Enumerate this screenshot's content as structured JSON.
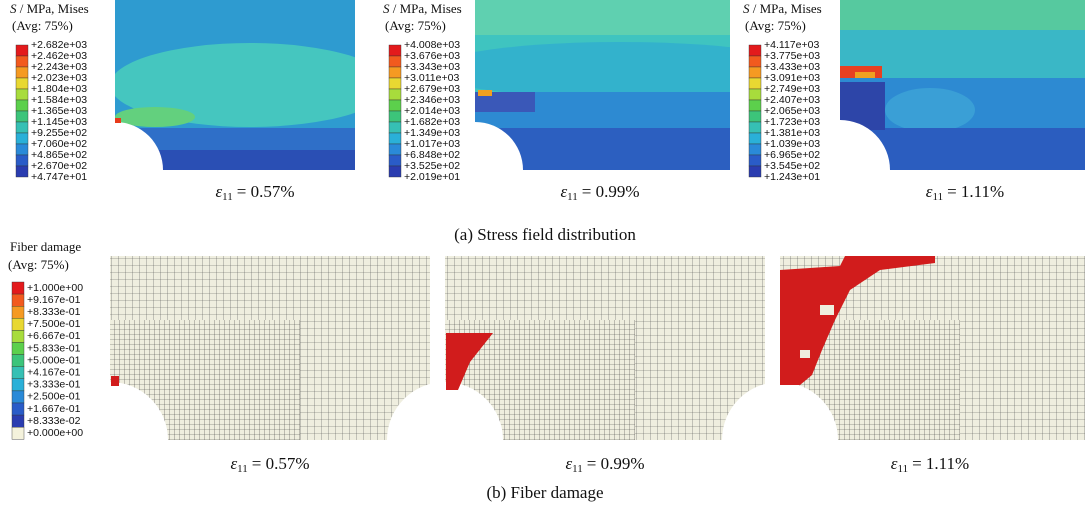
{
  "stress": {
    "panels": [
      {
        "title_symbol": "S",
        "title_rest": " / MPa, Mises",
        "avg": "(Avg: 75%)",
        "labels": [
          "+2.682e+03",
          "+2.462e+03",
          "+2.243e+03",
          "+2.023e+03",
          "+1.804e+03",
          "+1.584e+03",
          "+1.365e+03",
          "+1.145e+03",
          "+9.255e+02",
          "+7.060e+02",
          "+4.865e+02",
          "+2.670e+02",
          "+4.747e+01"
        ],
        "strain_symbol": "ε",
        "strain_sub": "11",
        "strain_value": "= 0.57%"
      },
      {
        "title_symbol": "S",
        "title_rest": " / MPa, Mises",
        "avg": "(Avg: 75%)",
        "labels": [
          "+4.008e+03",
          "+3.676e+03",
          "+3.343e+03",
          "+3.011e+03",
          "+2.679e+03",
          "+2.346e+03",
          "+2.014e+03",
          "+1.682e+03",
          "+1.349e+03",
          "+1.017e+03",
          "+6.848e+02",
          "+3.525e+02",
          "+2.019e+01"
        ],
        "strain_symbol": "ε",
        "strain_sub": "11",
        "strain_value": "= 0.99%"
      },
      {
        "title_symbol": "S",
        "title_rest": " / MPa, Mises",
        "avg": "(Avg: 75%)",
        "labels": [
          "+4.117e+03",
          "+3.775e+03",
          "+3.433e+03",
          "+3.091e+03",
          "+2.749e+03",
          "+2.407e+03",
          "+2.065e+03",
          "+1.723e+03",
          "+1.381e+03",
          "+1.039e+03",
          "+6.965e+02",
          "+3.545e+02",
          "+1.243e+01"
        ],
        "strain_symbol": "ε",
        "strain_sub": "11",
        "strain_value": "= 1.11%"
      }
    ],
    "caption": "(a) Stress field distribution"
  },
  "damage": {
    "legend": {
      "title": "Fiber damage",
      "avg": "(Avg: 75%)",
      "labels": [
        "+1.000e+00",
        "+9.167e-01",
        "+8.333e-01",
        "+7.500e-01",
        "+6.667e-01",
        "+5.833e-01",
        "+5.000e-01",
        "+4.167e-01",
        "+3.333e-01",
        "+2.500e-01",
        "+1.667e-01",
        "+8.333e-02",
        "+0.000e+00"
      ]
    },
    "panels": [
      {
        "strain_symbol": "ε",
        "strain_sub": "11",
        "strain_value": "= 0.57%"
      },
      {
        "strain_symbol": "ε",
        "strain_sub": "11",
        "strain_value": "= 0.99%"
      },
      {
        "strain_symbol": "ε",
        "strain_sub": "11",
        "strain_value": "= 1.11%"
      }
    ],
    "caption": "(b) Fiber damage"
  }
}
